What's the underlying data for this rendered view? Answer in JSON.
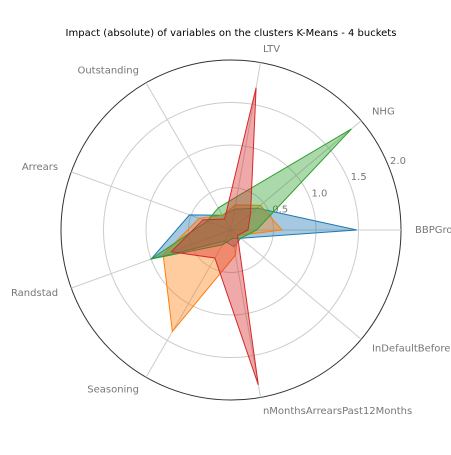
{
  "chart_data": {
    "type": "radar",
    "title": "Impact (absolute) of variables on the clusters K-Means - 4 buckets",
    "categories": [
      "BBPGroei",
      "NHG",
      "LTV",
      "Outstanding",
      "Arrears",
      "Randstad",
      "Seasoning",
      "nMonthsArrearsPast12Months",
      "InDefaultBefore"
    ],
    "series": [
      {
        "color": "#1f77b4",
        "values": [
          1.48,
          0.4,
          0.25,
          0.2,
          0.52,
          1.0,
          0.15,
          0.2,
          0.15
        ]
      },
      {
        "color": "#ff7f0e",
        "values": [
          0.6,
          0.45,
          0.3,
          0.2,
          0.4,
          0.85,
          1.38,
          0.3,
          0.1
        ]
      },
      {
        "color": "#2ca02c",
        "values": [
          0.3,
          1.85,
          0.4,
          0.3,
          0.3,
          1.0,
          0.2,
          0.1,
          0.15
        ]
      },
      {
        "color": "#d62728",
        "values": [
          0.2,
          0.3,
          1.7,
          0.15,
          0.35,
          0.75,
          0.38,
          1.85,
          0.1
        ]
      }
    ],
    "rlim": [
      0,
      2
    ],
    "rticks": [
      0.5,
      {
        "value": 1,
        "label": "1.0"
      },
      1.5,
      {
        "value": 2,
        "label": "2.0"
      }
    ],
    "grid": true
  }
}
